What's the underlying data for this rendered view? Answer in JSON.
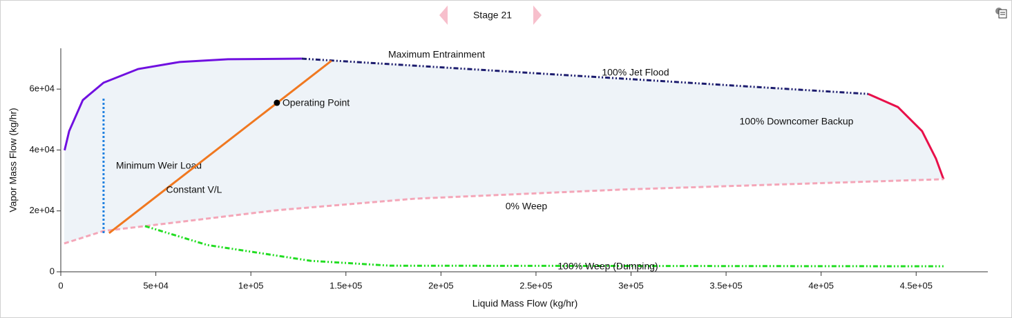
{
  "chart_data": {
    "type": "line",
    "title": "Stage 21",
    "x_label": "Liquid Mass Flow (kg/hr)",
    "y_label": "Vapor Mass Flow (kg/hr)",
    "xlim": [
      0,
      487700
    ],
    "ylim": [
      0,
      73400
    ],
    "xticks": [
      0,
      {
        "value": 50000,
        "label": "5e+04"
      },
      {
        "value": 100000,
        "label": "1e+05"
      },
      {
        "value": 150000,
        "label": "1.5e+05"
      },
      {
        "value": 200000,
        "label": "2e+05"
      },
      {
        "value": 250000,
        "label": "2.5e+05"
      },
      {
        "value": 300000,
        "label": "3e+05"
      },
      {
        "value": 350000,
        "label": "3.5e+05"
      },
      {
        "value": 400000,
        "label": "4e+05"
      },
      {
        "value": 450000,
        "label": "4.5e+05"
      }
    ],
    "yticks": [
      0,
      {
        "value": 20000,
        "label": "2e+04"
      },
      {
        "value": 40000,
        "label": "4e+04"
      },
      {
        "value": 60000,
        "label": "6e+04"
      }
    ],
    "region_color": "#eef3f8",
    "series": [
      {
        "name": "Maximum Entrainment",
        "color": "#7010e0",
        "dash": "solid",
        "x": [
          2000,
          4400,
          11600,
          22500,
          40700,
          62500,
          87900,
          126800
        ],
        "values": [
          39900,
          46200,
          56400,
          62100,
          66600,
          68900,
          69800,
          70000
        ]
      },
      {
        "name": "100% Jet Flood",
        "color": "#1c1c6e",
        "dash": "dashdot",
        "x": [
          126800,
          424800
        ],
        "values": [
          70000,
          58400
        ]
      },
      {
        "name": "100% Downcomer Backup",
        "color": "#e8104a",
        "dash": "solid",
        "x": [
          424800,
          440400,
          453100,
          460400,
          464400
        ],
        "values": [
          58400,
          54100,
          46200,
          37200,
          30400
        ]
      },
      {
        "name": "0% Weep",
        "color": "#f4a6b8",
        "dash": "dashed",
        "x": [
          1800,
          22500,
          44300,
          113400,
          186000,
          295000,
          404000,
          464400
        ],
        "values": [
          9300,
          13400,
          15000,
          20200,
          24000,
          27000,
          29200,
          30400
        ]
      },
      {
        "name": "100% Weep (Dumping)",
        "color": "#22dd22",
        "dash": "dashdot",
        "x": [
          44300,
          77000,
          131500,
          173300,
          464400
        ],
        "values": [
          15000,
          8800,
          3600,
          2000,
          1800
        ]
      },
      {
        "name": "Minimum Weir Load",
        "color": "#2080e0",
        "dash": "dotted",
        "x": [
          22500,
          22500
        ],
        "values": [
          12700,
          56900
        ]
      },
      {
        "name": "Constant V/L",
        "color": "#f07820",
        "dash": "solid",
        "x": [
          25400,
          142400
        ],
        "values": [
          12700,
          69300
        ]
      }
    ],
    "operating_point": {
      "name": "Operating Point",
      "x": 113700,
      "y": 55500,
      "color": "#000000"
    }
  }
}
